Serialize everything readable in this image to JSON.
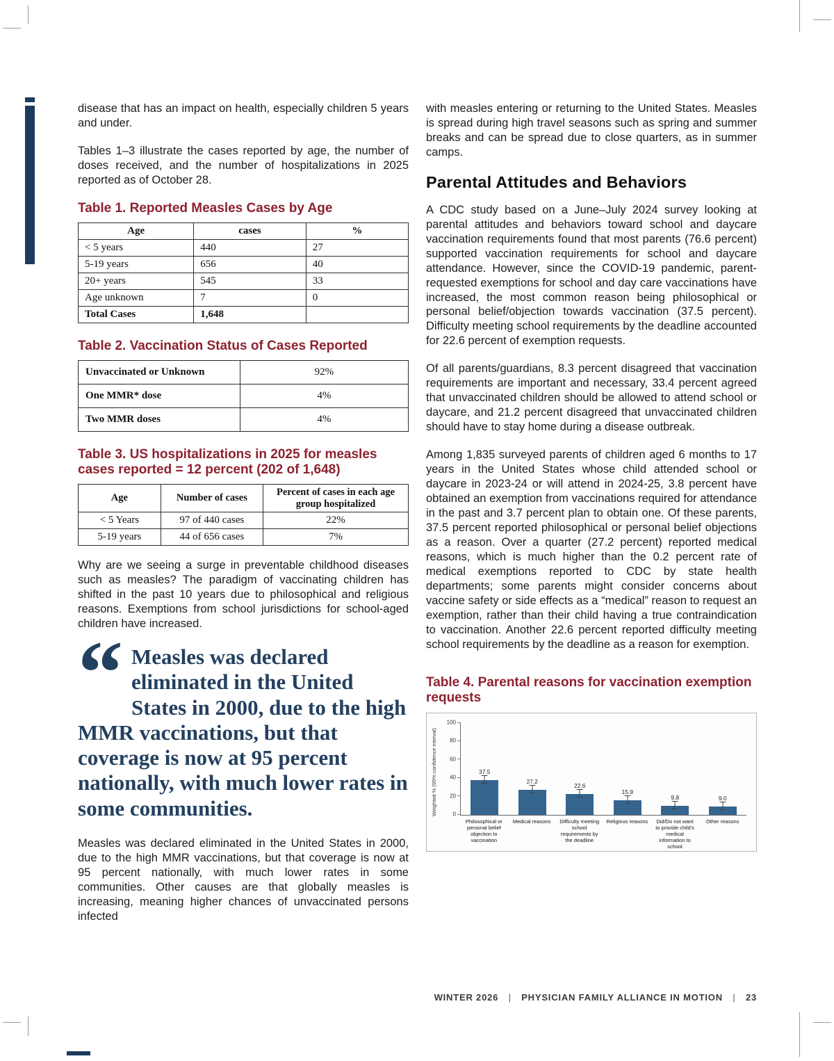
{
  "left_column": {
    "para1": "disease that has an impact on health, especially children 5 years and under.",
    "para2": "Tables 1–3 illustrate the cases reported by age, the number of doses received, and the number of hospitalizations in 2025 reported as of October 28.",
    "table1": {
      "title": "Table 1. Reported Measles Cases by Age",
      "headers": [
        "Age",
        "cases",
        "%"
      ],
      "rows": [
        [
          "< 5 years",
          "440",
          "27"
        ],
        [
          "5-19 years",
          "656",
          "40"
        ],
        [
          "20+ years",
          "545",
          "33"
        ],
        [
          "Age unknown",
          "7",
          "0"
        ],
        [
          "Total Cases",
          "1,648",
          ""
        ]
      ]
    },
    "table2": {
      "title": "Table 2. Vaccination Status of Cases Reported",
      "rows": [
        [
          "Unvaccinated or Unknown",
          "92%"
        ],
        [
          "One MMR* dose",
          "4%"
        ],
        [
          "Two MMR doses",
          "4%"
        ]
      ]
    },
    "table3": {
      "title": "Table 3. US hospitalizations in 2025 for measles cases reported = 12 percent (202 of 1,648)",
      "headers": [
        "Age",
        "Number of cases",
        "Percent of cases in each age group hospitalized"
      ],
      "rows": [
        [
          "< 5 Years",
          "97 of 440 cases",
          "22%"
        ],
        [
          "5-19 years",
          "44 of 656 cases",
          "7%"
        ]
      ]
    },
    "para3": "Why are we seeing a surge in preventable childhood diseases such as measles? The paradigm of vaccinating children has shifted in the past 10 years due to philosophical and religious reasons. Exemptions from school jurisdictions for school-aged children have increased.",
    "pull_quote": "Measles was declared eliminated in the United States in 2000, due to the high MMR vaccinations, but that coverage is now at 95 percent nationally, with much lower rates in some communities.",
    "para4": "Measles was declared eliminated in the United States in 2000, due to the high MMR vaccinations, but that coverage is now at 95 percent nationally, with much lower rates in some communities. Other causes are that globally measles is increasing, meaning higher chances of unvaccinated persons infected"
  },
  "right_column": {
    "para1": "with measles entering or returning to the United States. Measles is spread during high travel seasons such as spring and summer breaks and can be spread due to close quarters, as in summer camps.",
    "heading": "Parental Attitudes and Behaviors",
    "para2": "A CDC study based on a June–July 2024 survey looking at parental attitudes and behaviors toward school and daycare vaccination requirements found that most parents (76.6 percent) supported vaccination requirements for school and daycare attendance. However, since the COVID-19 pandemic, parent-requested exemptions for school and day care vaccinations have increased, the most common reason being philosophical or personal belief/objection towards vaccination (37.5 percent). Difficulty meeting school requirements by the deadline accounted for 22.6 percent of exemption requests.",
    "para3": "Of all parents/guardians, 8.3 percent disagreed that vaccination requirements are important and necessary, 33.4 percent agreed that unvaccinated children should be allowed to attend school or daycare, and 21.2 percent disagreed that unvaccinated children should have to stay home during a disease outbreak.",
    "para4": "Among 1,835 surveyed parents of children aged 6 months to 17 years in the United States whose child attended school or daycare in 2023-24 or will attend in 2024-25, 3.8 percent have obtained an exemption from vaccinations required for attendance in the past and 3.7 percent plan to obtain one. Of these parents, 37.5 percent reported philosophical or personal belief objections as a reason. Over a quarter (27.2 percent) reported medical reasons, which is much higher than the 0.2 percent rate of medical exemptions reported to CDC by state health departments; some parents might consider concerns about vaccine safety or side effects as a “medical” reason to request an exemption, rather than their child having a true contraindication to vaccination. Another 22.6 percent reported difficulty meeting school requirements by the deadline as a reason for exemption.",
    "table4_title": "Table 4. Parental reasons for vaccination exemption requests"
  },
  "chart_data": {
    "type": "bar",
    "title": "Table 4. Parental reasons for vaccination exemption requests",
    "ylabel": "Weighted % (95% confidence interval)",
    "xlabel": "",
    "ylim": [
      0,
      100
    ],
    "yticks": [
      0,
      20,
      40,
      60,
      80,
      100
    ],
    "grid": false,
    "legend": "none",
    "categories": [
      "Philosophical or personal belief objection to vaccination",
      "Medical reasons",
      "Difficulty meeting school requirements by the deadline",
      "Religious reasons",
      "Did/Do not want to provide child's medical information to school",
      "Other reasons"
    ],
    "values": [
      37.5,
      27.2,
      22.6,
      15.9,
      9.8,
      9.0
    ],
    "bar_color": "#35658f"
  },
  "footer": {
    "season": "WINTER 2026",
    "separator": "|",
    "publication": "PHYSICIAN FAMILY ALLIANCE IN MOTION",
    "page_number": "23"
  },
  "colors": {
    "table_title_maroon": "#8e2130",
    "pull_quote_navy": "#24405f",
    "accent_navy": "#1d3a5f",
    "bar_blue": "#35658f"
  },
  "icons": {
    "quote_mark": "“"
  }
}
